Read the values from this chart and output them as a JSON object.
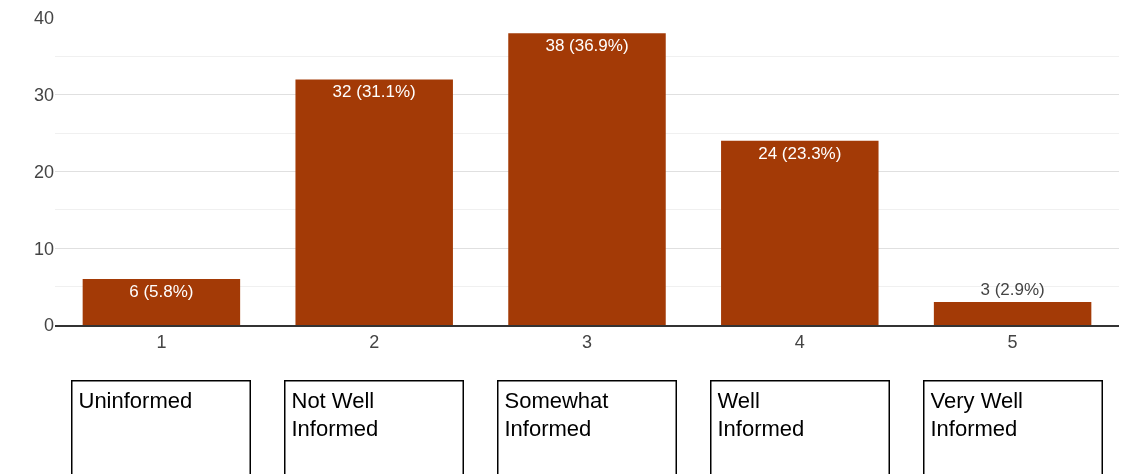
{
  "chart_data": {
    "type": "bar",
    "categories": [
      "1",
      "2",
      "3",
      "4",
      "5"
    ],
    "values": [
      6,
      32,
      38,
      24,
      3
    ],
    "value_labels": [
      "6 (5.8%)",
      "32 (31.1%)",
      "38 (36.9%)",
      "24 (23.3%)",
      "3 (2.9%)"
    ],
    "color": "#a33a06",
    "ylim": [
      0,
      40
    ],
    "yticks": [
      0,
      10,
      20,
      30,
      40
    ],
    "grid": "y",
    "annotations": [
      "Uninformed",
      "Not Well Informed",
      "Somewhat Informed",
      "Well Informed",
      "Very Well Informed"
    ]
  }
}
